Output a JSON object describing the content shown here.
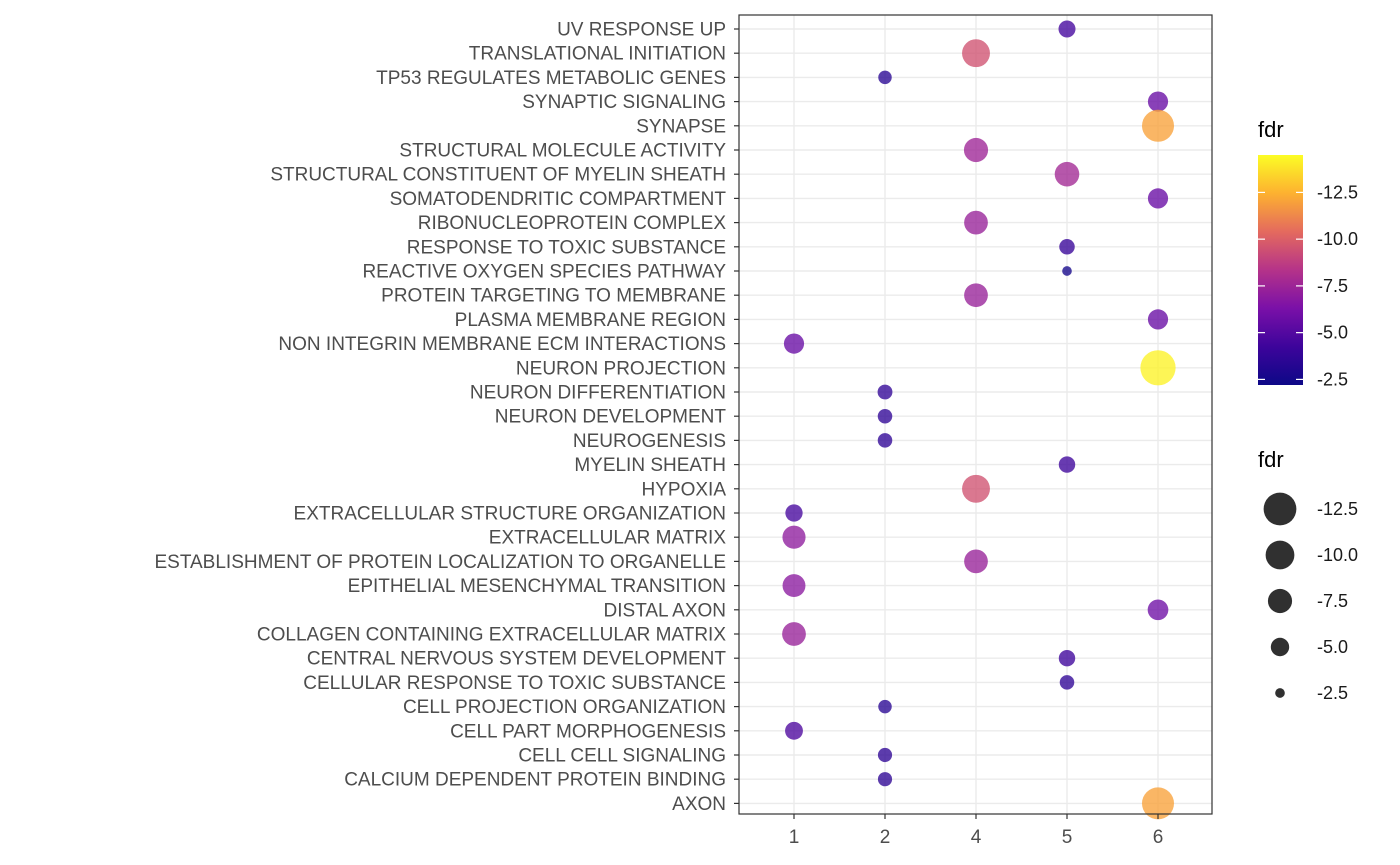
{
  "chart_data": {
    "type": "scatter",
    "subtype": "dot-plot",
    "x_categories": [
      "1",
      "2",
      "4",
      "5",
      "6"
    ],
    "y_categories": [
      "UV RESPONSE UP",
      "TRANSLATIONAL INITIATION",
      "TP53 REGULATES METABOLIC GENES",
      "SYNAPTIC SIGNALING",
      "SYNAPSE",
      "STRUCTURAL MOLECULE ACTIVITY",
      "STRUCTURAL CONSTITUENT OF MYELIN SHEATH",
      "SOMATODENDRITIC COMPARTMENT",
      "RIBONUCLEOPROTEIN COMPLEX",
      "RESPONSE TO TOXIC SUBSTANCE",
      "REACTIVE OXYGEN SPECIES PATHWAY",
      "PROTEIN TARGETING TO MEMBRANE",
      "PLASMA MEMBRANE REGION",
      "NON INTEGRIN MEMBRANE ECM INTERACTIONS",
      "NEURON PROJECTION",
      "NEURON DIFFERENTIATION",
      "NEURON DEVELOPMENT",
      "NEUROGENESIS",
      "MYELIN SHEATH",
      "HYPOXIA",
      "EXTRACELLULAR STRUCTURE ORGANIZATION",
      "EXTRACELLULAR MATRIX",
      "ESTABLISHMENT OF PROTEIN LOCALIZATION TO ORGANELLE",
      "EPITHELIAL MESENCHYMAL TRANSITION",
      "DISTAL AXON",
      "COLLAGEN CONTAINING EXTRACELLULAR MATRIX",
      "CENTRAL NERVOUS SYSTEM DEVELOPMENT",
      "CELLULAR RESPONSE TO TOXIC SUBSTANCE",
      "CELL PROJECTION ORGANIZATION",
      "CELL PART MORPHOGENESIS",
      "CELL CELL SIGNALING",
      "CALCIUM DEPENDENT PROTEIN BINDING",
      "AXON"
    ],
    "points": [
      {
        "term": "UV RESPONSE UP",
        "x": "5",
        "fdr": -4.5
      },
      {
        "term": "TRANSLATIONAL INITIATION",
        "x": "4",
        "fdr": -9.5
      },
      {
        "term": "TP53 REGULATES METABOLIC GENES",
        "x": "2",
        "fdr": -3.4
      },
      {
        "term": "SYNAPTIC SIGNALING",
        "x": "6",
        "fdr": -5.7
      },
      {
        "term": "SYNAPSE",
        "x": "6",
        "fdr": -12.0
      },
      {
        "term": "STRUCTURAL MOLECULE ACTIVITY",
        "x": "4",
        "fdr": -7.5
      },
      {
        "term": "STRUCTURAL CONSTITUENT OF MYELIN SHEATH",
        "x": "5",
        "fdr": -7.7
      },
      {
        "term": "SOMATODENDRITIC COMPARTMENT",
        "x": "6",
        "fdr": -5.7
      },
      {
        "term": "RIBONUCLEOPROTEIN COMPLEX",
        "x": "4",
        "fdr": -7.3
      },
      {
        "term": "RESPONSE TO TOXIC SUBSTANCE",
        "x": "5",
        "fdr": -4.0
      },
      {
        "term": "REACTIVE OXYGEN SPECIES PATHWAY",
        "x": "5",
        "fdr": -2.5
      },
      {
        "term": "PROTEIN TARGETING TO MEMBRANE",
        "x": "4",
        "fdr": -7.3
      },
      {
        "term": "PLASMA MEMBRANE REGION",
        "x": "6",
        "fdr": -5.7
      },
      {
        "term": "NON INTEGRIN MEMBRANE ECM INTERACTIONS",
        "x": "1",
        "fdr": -5.7
      },
      {
        "term": "NEURON PROJECTION",
        "x": "6",
        "fdr": -14.2
      },
      {
        "term": "NEURON DIFFERENTIATION",
        "x": "2",
        "fdr": -3.8
      },
      {
        "term": "NEURON DEVELOPMENT",
        "x": "2",
        "fdr": -3.7
      },
      {
        "term": "NEUROGENESIS",
        "x": "2",
        "fdr": -3.7
      },
      {
        "term": "MYELIN SHEATH",
        "x": "5",
        "fdr": -4.3
      },
      {
        "term": "HYPOXIA",
        "x": "4",
        "fdr": -9.5
      },
      {
        "term": "EXTRACELLULAR STRUCTURE ORGANIZATION",
        "x": "1",
        "fdr": -4.6
      },
      {
        "term": "EXTRACELLULAR MATRIX",
        "x": "1",
        "fdr": -7.0
      },
      {
        "term": "ESTABLISHMENT OF PROTEIN LOCALIZATION TO ORGANELLE",
        "x": "4",
        "fdr": -7.3
      },
      {
        "term": "EPITHELIAL MESENCHYMAL TRANSITION",
        "x": "1",
        "fdr": -6.9
      },
      {
        "term": "DISTAL AXON",
        "x": "6",
        "fdr": -5.9
      },
      {
        "term": "COLLAGEN CONTAINING EXTRACELLULAR MATRIX",
        "x": "1",
        "fdr": -7.3
      },
      {
        "term": "CENTRAL NERVOUS SYSTEM DEVELOPMENT",
        "x": "5",
        "fdr": -4.3
      },
      {
        "term": "CELLULAR RESPONSE TO TOXIC SUBSTANCE",
        "x": "5",
        "fdr": -3.7
      },
      {
        "term": "CELL PROJECTION ORGANIZATION",
        "x": "2",
        "fdr": -3.4
      },
      {
        "term": "CELL PART MORPHOGENESIS",
        "x": "1",
        "fdr": -4.8
      },
      {
        "term": "CELL CELL SIGNALING",
        "x": "2",
        "fdr": -3.6
      },
      {
        "term": "CALCIUM DEPENDENT PROTEIN BINDING",
        "x": "2",
        "fdr": -3.6
      },
      {
        "term": "AXON",
        "x": "6",
        "fdr": -12.0
      }
    ],
    "color_legend": {
      "title": "fdr",
      "ticks": [
        -12.5,
        -10.0,
        -7.5,
        -5.0,
        -2.5
      ],
      "tick_labels": [
        "-12.5",
        "-10.0",
        "-7.5",
        "-5.0",
        "-2.5"
      ],
      "range": [
        -14.5,
        -2.2
      ],
      "palette": [
        "#fcfd25",
        "#fdb130",
        "#e46a5e",
        "#b53389",
        "#7a10a8",
        "#3d049b",
        "#0d0887"
      ]
    },
    "size_legend": {
      "title": "fdr",
      "ticks": [
        -12.5,
        -10.0,
        -7.5,
        -5.0,
        -2.5
      ],
      "tick_labels": [
        "-12.5",
        "-10.0",
        "-7.5",
        "-5.0",
        "-2.5"
      ]
    },
    "grid": true,
    "legend_position": "right",
    "xlabel": "",
    "ylabel": ""
  }
}
